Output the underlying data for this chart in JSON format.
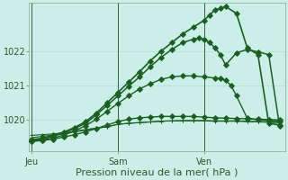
{
  "background_color": "#cceee8",
  "grid_color": "#aaddcc",
  "line_color": "#1a6020",
  "xlabel": "Pression niveau de la mer( hPa )",
  "xlabel_fontsize": 8,
  "tick_fontsize": 7,
  "ylim": [
    1019.1,
    1023.4
  ],
  "yticks": [
    1020,
    1021,
    1022
  ],
  "xtick_labels": [
    "Jeu",
    "Sam",
    "Ven"
  ],
  "xtick_positions": [
    0,
    16,
    32
  ],
  "xlim": [
    -0.5,
    47
  ],
  "vlines": [
    0,
    16,
    32
  ],
  "vline_color": "#336633",
  "vline_linewidth": 0.7,
  "series": [
    {
      "x": [
        0,
        2,
        4,
        6,
        8,
        10,
        12,
        14,
        16,
        18,
        20,
        22,
        24,
        26,
        28,
        30,
        32,
        34,
        36,
        38,
        40,
        42,
        44,
        46
      ],
      "y": [
        1019.55,
        1019.57,
        1019.59,
        1019.62,
        1019.67,
        1019.72,
        1019.76,
        1019.8,
        1019.87,
        1019.9,
        1019.92,
        1019.94,
        1019.96,
        1019.97,
        1019.97,
        1019.97,
        1019.97,
        1019.96,
        1019.96,
        1019.96,
        1019.95,
        1019.94,
        1019.93,
        1019.92
      ],
      "marker": "+",
      "linewidth": 0.8,
      "markersize": 3
    },
    {
      "x": [
        0,
        2,
        4,
        6,
        8,
        10,
        12,
        14,
        16,
        18,
        20,
        22,
        24,
        26,
        28,
        30,
        32,
        34,
        36,
        38,
        40,
        42,
        44,
        46
      ],
      "y": [
        1019.48,
        1019.52,
        1019.56,
        1019.6,
        1019.65,
        1019.7,
        1019.75,
        1019.8,
        1019.87,
        1019.9,
        1019.92,
        1019.94,
        1019.96,
        1019.97,
        1019.98,
        1019.98,
        1019.98,
        1019.97,
        1019.97,
        1019.97,
        1019.96,
        1019.95,
        1019.94,
        1019.92
      ],
      "marker": "+",
      "linewidth": 0.8,
      "markersize": 3
    },
    {
      "x": [
        0,
        2,
        4,
        6,
        8,
        10,
        12,
        14,
        16,
        18,
        20,
        22,
        24,
        26,
        28,
        30,
        32,
        33,
        34,
        35,
        36,
        38,
        40,
        42,
        44,
        46
      ],
      "y": [
        1019.42,
        1019.47,
        1019.55,
        1019.65,
        1019.78,
        1019.95,
        1020.2,
        1020.5,
        1020.8,
        1021.1,
        1021.4,
        1021.72,
        1022.0,
        1022.25,
        1022.5,
        1022.7,
        1022.9,
        1023.05,
        1023.2,
        1023.25,
        1023.3,
        1023.1,
        1022.1,
        1021.9,
        1019.9,
        1019.85
      ],
      "marker": "D",
      "linewidth": 1.2,
      "markersize": 3
    },
    {
      "x": [
        0,
        2,
        4,
        6,
        8,
        10,
        12,
        14,
        16,
        18,
        20,
        22,
        24,
        26,
        28,
        30,
        31,
        32,
        33,
        34,
        35,
        36,
        38,
        40,
        42,
        44,
        46
      ],
      "y": [
        1019.4,
        1019.44,
        1019.52,
        1019.62,
        1019.75,
        1019.9,
        1020.15,
        1020.42,
        1020.7,
        1020.98,
        1021.25,
        1021.55,
        1021.82,
        1022.05,
        1022.25,
        1022.35,
        1022.38,
        1022.35,
        1022.25,
        1022.1,
        1021.9,
        1021.6,
        1021.95,
        1022.05,
        1021.98,
        1021.9,
        1019.82
      ],
      "marker": "D",
      "linewidth": 1.1,
      "markersize": 3
    },
    {
      "x": [
        0,
        2,
        4,
        6,
        8,
        10,
        12,
        14,
        16,
        18,
        20,
        22,
        24,
        26,
        28,
        30,
        32,
        34,
        35,
        36,
        37,
        38,
        40,
        42,
        44,
        46
      ],
      "y": [
        1019.38,
        1019.41,
        1019.47,
        1019.56,
        1019.68,
        1019.83,
        1020.02,
        1020.25,
        1020.48,
        1020.7,
        1020.9,
        1021.05,
        1021.18,
        1021.25,
        1021.28,
        1021.28,
        1021.25,
        1021.22,
        1021.2,
        1021.15,
        1021.0,
        1020.7,
        1020.05,
        1020.0,
        1019.98,
        1019.96
      ],
      "marker": "D",
      "linewidth": 1.0,
      "markersize": 3
    },
    {
      "x": [
        0,
        2,
        4,
        6,
        8,
        10,
        12,
        14,
        16,
        18,
        20,
        22,
        24,
        26,
        28,
        30,
        32,
        34,
        36,
        38,
        40,
        42,
        44,
        46
      ],
      "y": [
        1019.37,
        1019.4,
        1019.44,
        1019.5,
        1019.57,
        1019.65,
        1019.75,
        1019.85,
        1019.95,
        1020.02,
        1020.06,
        1020.08,
        1020.1,
        1020.1,
        1020.1,
        1020.1,
        1020.08,
        1020.06,
        1020.05,
        1020.04,
        1020.03,
        1020.02,
        1020.01,
        1020.0
      ],
      "marker": "D",
      "linewidth": 1.0,
      "markersize": 3
    }
  ]
}
